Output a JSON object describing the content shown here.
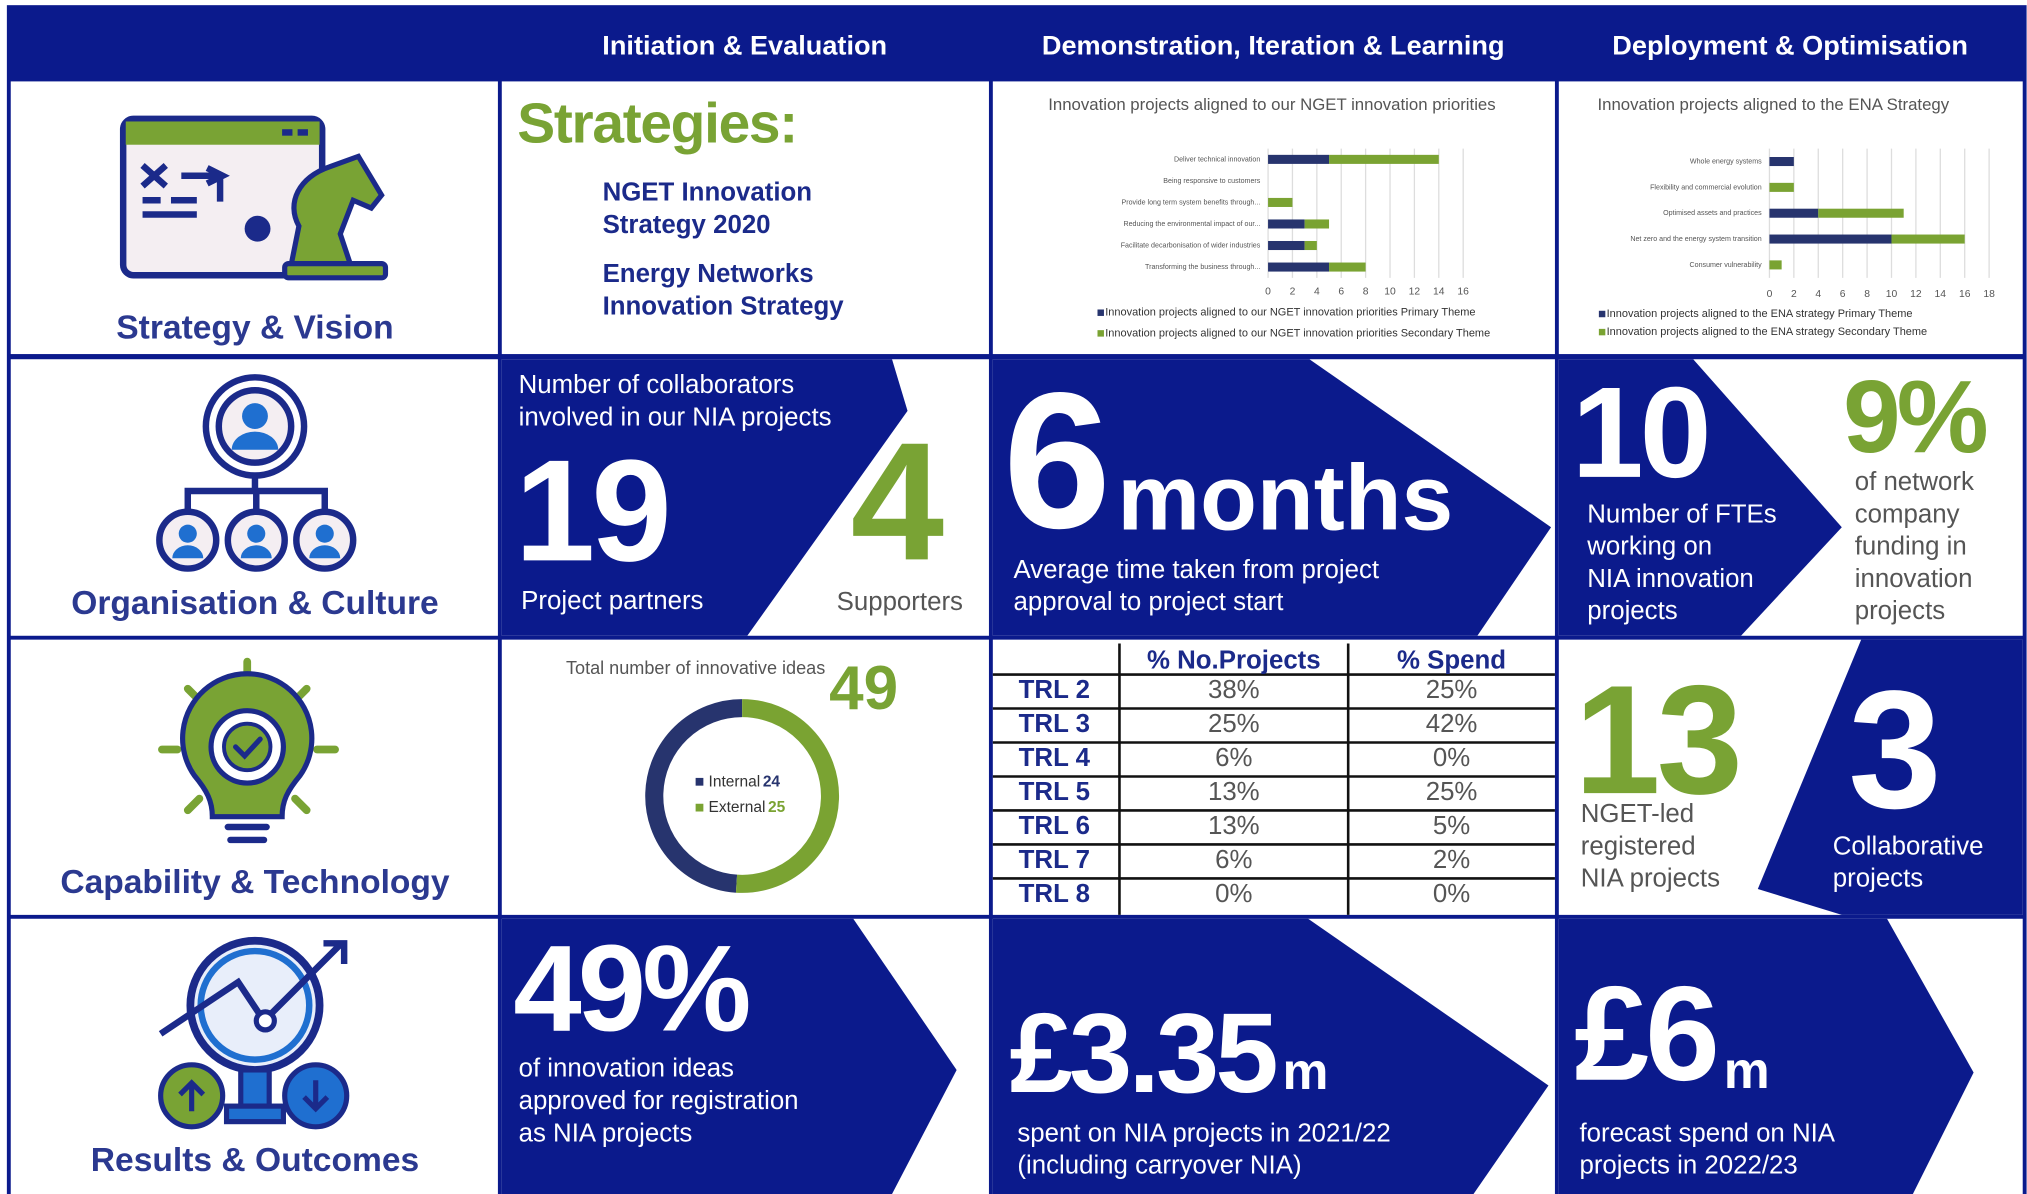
{
  "header": {
    "columns": [
      "Initiation & Evaluation",
      "Demonstration, Iteration & Learning",
      "Deployment & Optimisation"
    ]
  },
  "rows": [
    "Strategy & Vision",
    "Organisation & Culture",
    "Capability & Technology",
    "Results & Outcomes"
  ],
  "strategies": {
    "title": "Strategies:",
    "items": [
      [
        "NGET Innovation",
        "Strategy 2020"
      ],
      [
        "Energy Networks",
        "Innovation Strategy"
      ]
    ]
  },
  "charts": [
    {
      "type": "bar",
      "orientation": "horizontal",
      "stacked": true,
      "title": "Innovation projects aligned to our NGET innovation priorities",
      "categories": [
        "Deliver technical innovation",
        "Being responsive to customers",
        "Provide long term system benefits through...",
        "Reducing the environmental impact of our...",
        "Facilitate decarbonisation of wider industries",
        "Transforming the business through..."
      ],
      "series": [
        {
          "name": "Innovation projects aligned to our NGET innovation priorities Primary Theme",
          "color": "#27346e",
          "values": [
            5,
            0,
            0,
            3,
            3,
            5
          ]
        },
        {
          "name": "Innovation projects aligned to our NGET innovation priorities Secondary Theme",
          "color": "#7aa332",
          "values": [
            9,
            0,
            2,
            2,
            1,
            3
          ]
        }
      ],
      "xlim": [
        0,
        16
      ],
      "xticks": [
        0,
        2,
        4,
        6,
        8,
        10,
        12,
        14,
        16
      ],
      "grid": true
    },
    {
      "type": "bar",
      "orientation": "horizontal",
      "stacked": true,
      "title": "Innovation projects aligned to the ENA Strategy",
      "categories": [
        "Whole energy systems",
        "Flexibility and commercial evolution",
        "Optimised assets and practices",
        "Net zero and the energy system transition",
        "Consumer vulnerability"
      ],
      "series": [
        {
          "name": "Innovation projects aligned to the ENA strategy Primary Theme",
          "color": "#27346e",
          "values": [
            2,
            0,
            4,
            10,
            0
          ]
        },
        {
          "name": "Innovation projects aligned to the ENA strategy Secondary Theme",
          "color": "#7aa332",
          "values": [
            0,
            2,
            7,
            6,
            1
          ]
        }
      ],
      "xlim": [
        0,
        18
      ],
      "xticks": [
        0,
        2,
        4,
        6,
        8,
        10,
        12,
        14,
        16,
        18
      ],
      "grid": true
    }
  ],
  "collaborators": {
    "text": [
      "Number of collaborators",
      "involved in our NIA projects"
    ],
    "partners": {
      "value": "19",
      "label": "Project partners"
    },
    "supporters": {
      "value": "4",
      "label": "Supporters"
    }
  },
  "time": {
    "value": "6",
    "unit": "months",
    "text": [
      "Average time taken from project",
      "approval to project start"
    ]
  },
  "ftes": {
    "value": "10",
    "text": [
      "Number of FTEs",
      "working on",
      "NIA innovation",
      "projects"
    ]
  },
  "funding": {
    "value": "9%",
    "text": [
      "of network",
      "company",
      "funding in",
      "innovation",
      "projects"
    ]
  },
  "ideas": {
    "type": "donut",
    "title": "Total number of innovative ideas",
    "total": 49,
    "series": [
      {
        "name": "Internal",
        "color": "#27346e",
        "value": 24
      },
      {
        "name": "External",
        "color": "#7aa332",
        "value": 25
      }
    ]
  },
  "trl_table": {
    "header": [
      "% No.Projects",
      "% Spend"
    ],
    "rows": [
      [
        "TRL 2",
        "38%",
        "25%"
      ],
      [
        "TRL 3",
        "25%",
        "42%"
      ],
      [
        "TRL 4",
        "6%",
        "0%"
      ],
      [
        "TRL 5",
        "13%",
        "25%"
      ],
      [
        "TRL 6",
        "13%",
        "5%"
      ],
      [
        "TRL 7",
        "6%",
        "2%"
      ],
      [
        "TRL 8",
        "0%",
        "0%"
      ]
    ]
  },
  "registered": {
    "value": "13",
    "text": [
      "NGET-led",
      "registered",
      "NIA projects"
    ]
  },
  "collaborative": {
    "value": "3",
    "text": [
      "Collaborative",
      "projects"
    ]
  },
  "approved": {
    "value": "49%",
    "text": [
      "of innovation ideas",
      "approved for registration",
      "as NIA projects"
    ]
  },
  "spent": {
    "value": "£3.35",
    "unit": "m",
    "text": [
      "spent on NIA projects in 2021/22",
      "(including carryover NIA)"
    ]
  },
  "forecast": {
    "value": "£6",
    "unit": "m",
    "text": [
      "forecast spend on NIA",
      "projects in 2022/23"
    ]
  }
}
